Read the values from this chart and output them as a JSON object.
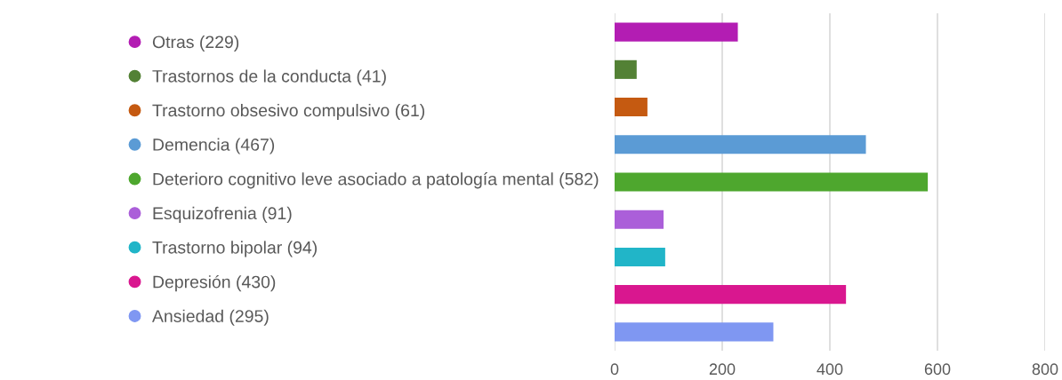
{
  "chart_data": {
    "type": "bar",
    "orientation": "horizontal",
    "categories": [
      null,
      null,
      null,
      null,
      null,
      null,
      null,
      null,
      null
    ],
    "series": [
      {
        "name": "Otras (229)",
        "color": "#b31db3",
        "values": [
          229,
          null,
          null,
          null,
          null,
          null,
          null,
          null,
          null
        ]
      },
      {
        "name": "Trastornos de la conducta (41)",
        "color": "#538135",
        "values": [
          null,
          41,
          null,
          null,
          null,
          null,
          null,
          null,
          null
        ]
      },
      {
        "name": "Trastorno obsesivo compulsivo (61)",
        "color": "#c55a11",
        "values": [
          null,
          null,
          61,
          null,
          null,
          null,
          null,
          null,
          null
        ]
      },
      {
        "name": "Demencia (467)",
        "color": "#5b9bd5",
        "values": [
          null,
          null,
          null,
          467,
          null,
          null,
          null,
          null,
          null
        ]
      },
      {
        "name": "Deterioro cognitivo leve asociado a patología mental (582)",
        "color": "#4ea72e",
        "values": [
          null,
          null,
          null,
          null,
          582,
          null,
          null,
          null,
          null
        ]
      },
      {
        "name": "Esquizofrenia (91)",
        "color": "#ab5fd9",
        "values": [
          null,
          null,
          null,
          null,
          null,
          91,
          null,
          null,
          null
        ]
      },
      {
        "name": "Trastorno bipolar (94)",
        "color": "#21b5c8",
        "values": [
          null,
          null,
          null,
          null,
          null,
          null,
          94,
          null,
          null
        ]
      },
      {
        "name": "Depresión (430)",
        "color": "#d9178f",
        "values": [
          null,
          null,
          null,
          null,
          null,
          null,
          null,
          430,
          null
        ]
      },
      {
        "name": "Ansiedad (295)",
        "color": "#7f97f2",
        "values": [
          null,
          null,
          null,
          null,
          null,
          null,
          null,
          null,
          295
        ]
      }
    ],
    "xlim": [
      0,
      800
    ],
    "xticks": [
      0,
      200,
      400,
      600,
      800
    ],
    "grid": "x",
    "legend": "left",
    "marker": "circle"
  }
}
